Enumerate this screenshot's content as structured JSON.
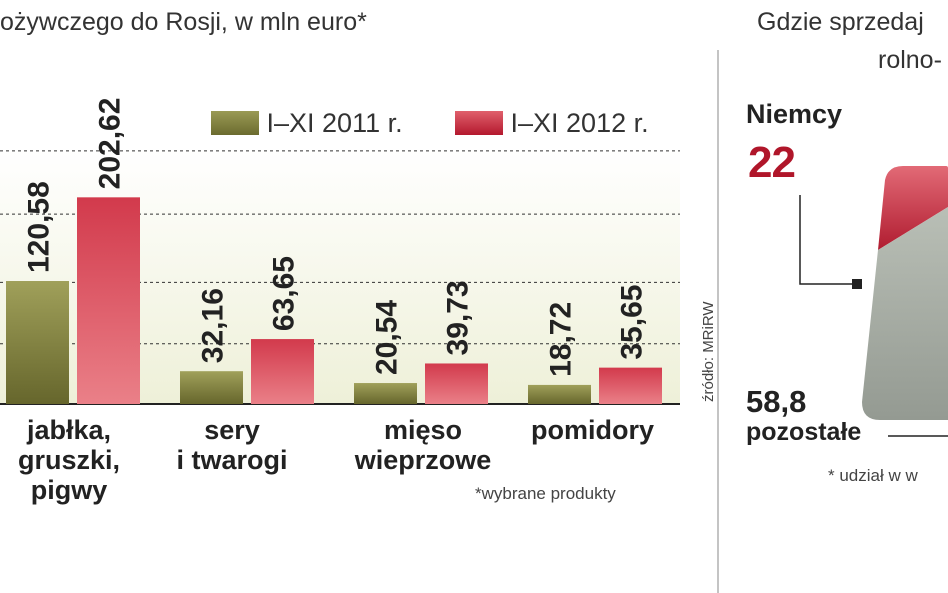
{
  "header": {
    "left_title": "ożywczego do Rosji, w mln euro*",
    "right_title_line1": "Gdzie sprzedaj",
    "right_title_line2": "rolno-"
  },
  "source": "źródło: MRiRW",
  "footnote": "*wybrane produkty",
  "footnote_right": "* udział w w",
  "colors": {
    "series_2011": "#7d7d3a",
    "series_2012": "#c8283c",
    "pie_red": "#c4283b",
    "pie_gray": "#a4aaa2"
  },
  "pie": {
    "germany_label": "Niemcy",
    "germany_value": "22",
    "rest_value": "58,8",
    "rest_label": "pozostałe"
  },
  "chart_data": {
    "type": "bar",
    "title": "",
    "categories": [
      "jabłka,\ngruszki,\npigwy",
      "sery\ni twarogi",
      "mięso\nwieprzowe",
      "pomidory"
    ],
    "series": [
      {
        "name": "I–XI 2011 r.",
        "values": [
          120.58,
          32.16,
          20.54,
          18.72
        ],
        "labels": [
          "120,58",
          "32,16",
          "20,54",
          "18,72"
        ]
      },
      {
        "name": "I–XI 2012 r.",
        "values": [
          202.62,
          63.65,
          39.73,
          35.65
        ],
        "labels": [
          "202,62",
          "63,65",
          "39,73",
          "35,65"
        ]
      }
    ],
    "ylim": [
      0,
      250
    ],
    "grid": true,
    "legend": "top-right"
  }
}
